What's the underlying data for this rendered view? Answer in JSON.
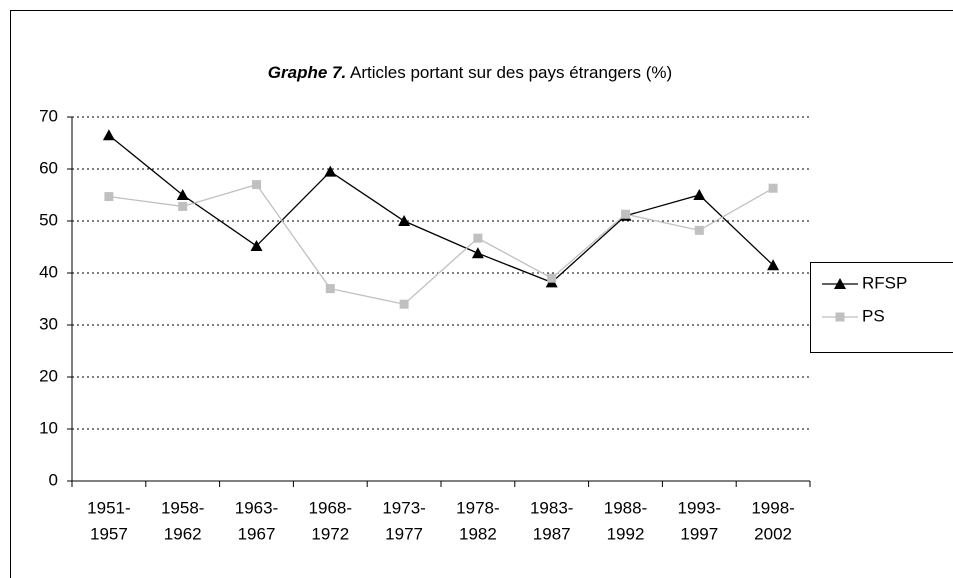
{
  "chart_data": {
    "type": "line",
    "title_label": "Graphe 7.",
    "title": "Articles portant sur des pays étrangers (%)",
    "categories": [
      [
        "1951-",
        "1957"
      ],
      [
        "1958-",
        "1962"
      ],
      [
        "1963-",
        "1967"
      ],
      [
        "1968-",
        "1972"
      ],
      [
        "1973-",
        "1977"
      ],
      [
        "1978-",
        "1982"
      ],
      [
        "1983-",
        "1987"
      ],
      [
        "1988-",
        "1992"
      ],
      [
        "1993-",
        "1997"
      ],
      [
        "1998-",
        "2002"
      ]
    ],
    "series": [
      {
        "name": "RFSP",
        "color": "#000000",
        "marker": "triangle",
        "values": [
          66.5,
          55,
          45.2,
          59.5,
          50,
          43.8,
          38.2,
          51,
          55,
          41.5
        ]
      },
      {
        "name": "PS",
        "color": "#c0c0c0",
        "marker": "square",
        "values": [
          54.7,
          52.8,
          57,
          37,
          34,
          46.7,
          39,
          51.3,
          48.2,
          56.3
        ]
      }
    ],
    "ylim": [
      0,
      70
    ],
    "yticks": [
      0,
      10,
      20,
      30,
      40,
      50,
      60,
      70
    ],
    "grid": true,
    "legend": "right"
  }
}
